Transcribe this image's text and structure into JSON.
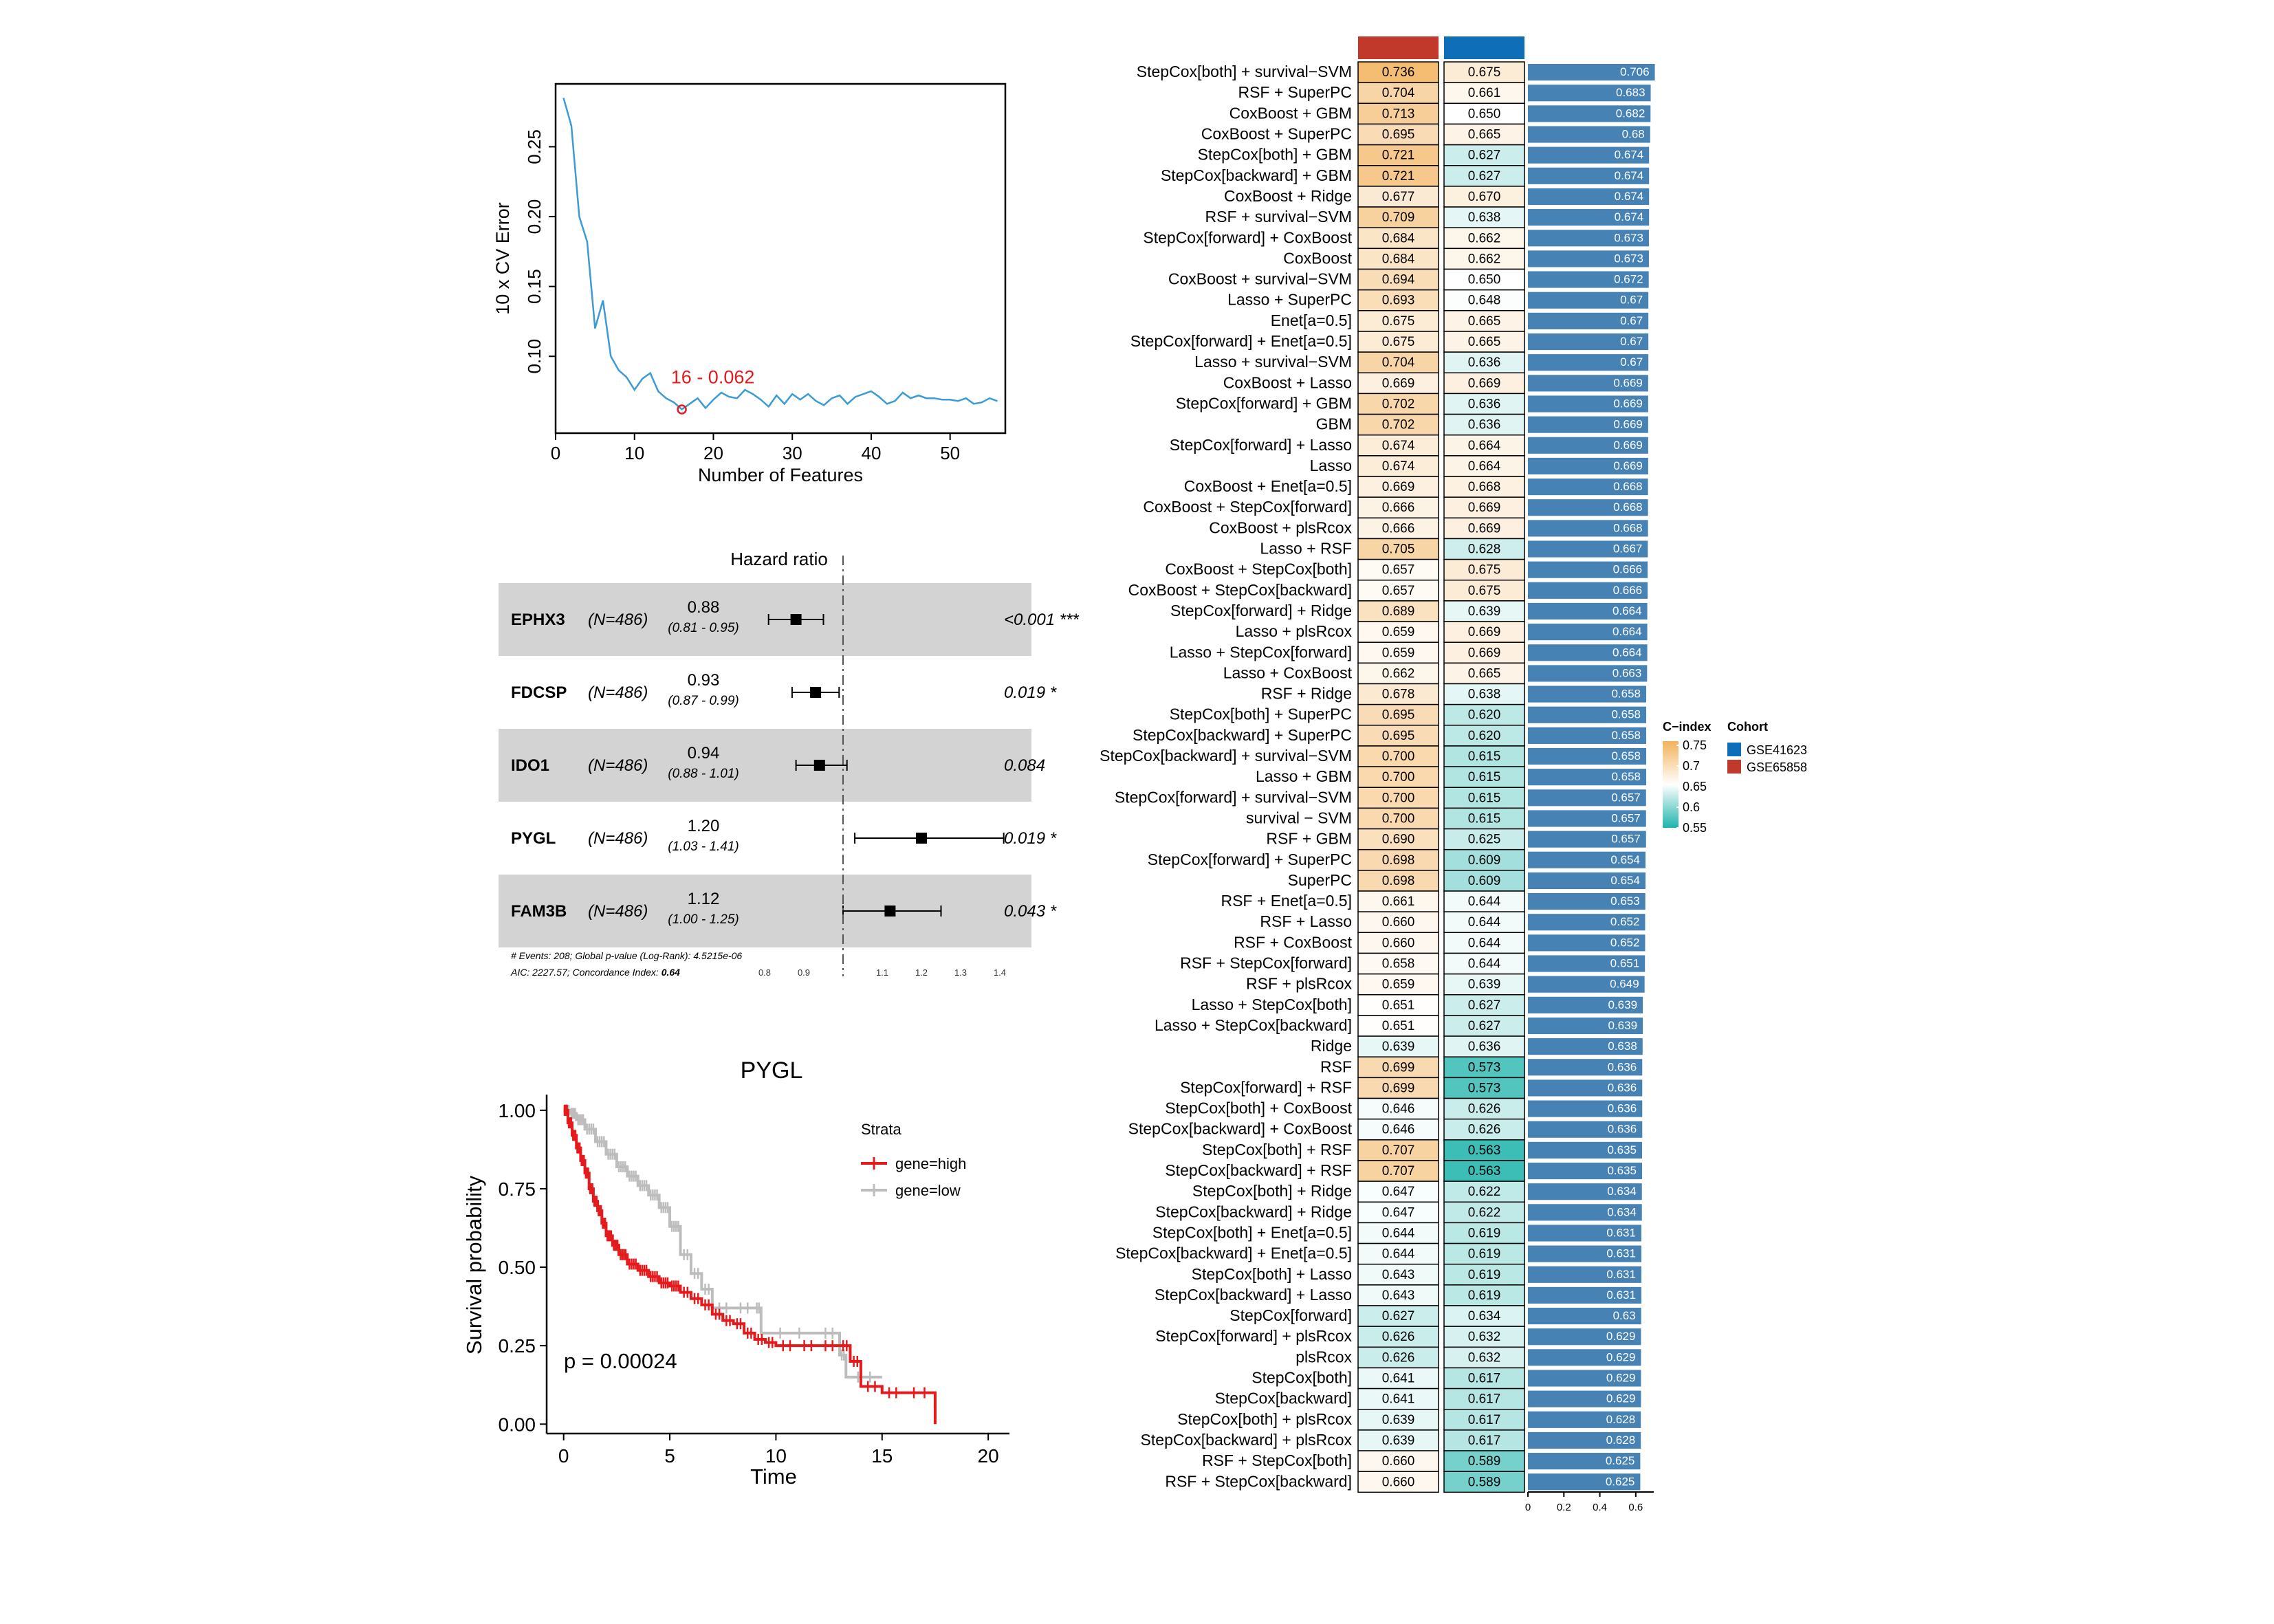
{
  "chart_data": [
    {
      "type": "line",
      "xlabel": "Number of Features",
      "ylabel": "10 x CV Error",
      "xlim": [
        0,
        57
      ],
      "ylim": [
        0.045,
        0.295
      ],
      "xticks": [
        0,
        10,
        20,
        30,
        40,
        50
      ],
      "yticks": [
        0.1,
        0.15,
        0.2,
        0.25
      ],
      "ytick_labels": [
        "0.10",
        "0.15",
        "0.20",
        "0.25"
      ],
      "color": "#3a9bd5",
      "annotation": "16 - 0.062",
      "highlight": {
        "x": 16,
        "y": 0.062
      },
      "x": [
        1,
        2,
        3,
        4,
        5,
        6,
        7,
        8,
        9,
        10,
        11,
        12,
        13,
        14,
        15,
        16,
        17,
        18,
        19,
        20,
        21,
        22,
        23,
        24,
        25,
        26,
        27,
        28,
        29,
        30,
        31,
        32,
        33,
        34,
        35,
        36,
        37,
        38,
        39,
        40,
        41,
        42,
        43,
        44,
        45,
        46,
        47,
        48,
        49,
        50,
        51,
        52,
        53,
        54,
        55,
        56
      ],
      "y": [
        0.285,
        0.265,
        0.2,
        0.182,
        0.12,
        0.14,
        0.1,
        0.09,
        0.085,
        0.076,
        0.084,
        0.088,
        0.075,
        0.07,
        0.067,
        0.062,
        0.066,
        0.07,
        0.063,
        0.069,
        0.074,
        0.071,
        0.07,
        0.076,
        0.073,
        0.069,
        0.064,
        0.072,
        0.066,
        0.073,
        0.069,
        0.073,
        0.068,
        0.065,
        0.07,
        0.072,
        0.066,
        0.071,
        0.073,
        0.075,
        0.071,
        0.066,
        0.068,
        0.074,
        0.07,
        0.072,
        0.07,
        0.07,
        0.069,
        0.069,
        0.068,
        0.07,
        0.066,
        0.067,
        0.07,
        0.068
      ]
    },
    {
      "type": "forest",
      "title": "Hazard ratio",
      "rows": [
        {
          "gene": "EPHX3",
          "n": "(N=486)",
          "hr": 0.88,
          "hr_label": "0.88",
          "ci_label": "(0.81 - 0.95)",
          "lo": 0.81,
          "hi": 0.95,
          "p": "<0.001 ***"
        },
        {
          "gene": "FDCSP",
          "n": "(N=486)",
          "hr": 0.93,
          "hr_label": "0.93",
          "ci_label": "(0.87 - 0.99)",
          "lo": 0.87,
          "hi": 0.99,
          "p": "0.019 *"
        },
        {
          "gene": "IDO1",
          "n": "(N=486)",
          "hr": 0.94,
          "hr_label": "0.94",
          "ci_label": "(0.88 - 1.01)",
          "lo": 0.88,
          "hi": 1.01,
          "p": "0.084"
        },
        {
          "gene": "PYGL",
          "n": "(N=486)",
          "hr": 1.2,
          "hr_label": "1.20",
          "ci_label": "(1.03 - 1.41)",
          "lo": 1.03,
          "hi": 1.41,
          "p": "0.019 *"
        },
        {
          "gene": "FAM3B",
          "n": "(N=486)",
          "hr": 1.12,
          "hr_label": "1.12",
          "ci_label": "(1.00 - 1.25)",
          "lo": 1.0,
          "hi": 1.25,
          "p": "0.043 *"
        }
      ],
      "footnote_1_pre": "# Events: 208; Global p-value (Log-Rank): ",
      "footnote_1_val": "4.5215e-06",
      "footnote_2_pre": "AIC: 2227.57; Concordance Index: ",
      "footnote_2_val": "0.64",
      "xticks": [
        0.8,
        0.9,
        1.1,
        1.2,
        1.3,
        1.4
      ],
      "xtick_labels": [
        "0.8",
        "0.9",
        "1.1",
        "1.2",
        "1.3",
        "1.4"
      ],
      "ref_line": 1.0,
      "xlim": [
        0.7,
        1.45
      ],
      "row_shade": "#d3d3d3"
    },
    {
      "type": "km",
      "title": "PYGL",
      "xlabel": "Time",
      "ylabel": "Survival probability",
      "xlim": [
        -0.8,
        21
      ],
      "ylim": [
        -0.03,
        1.05
      ],
      "xticks": [
        0,
        5,
        10,
        15,
        20
      ],
      "yticks": [
        0,
        0.25,
        0.5,
        0.75,
        1.0
      ],
      "ytick_labels": [
        "0.00",
        "0.25",
        "0.50",
        "0.75",
        "1.00"
      ],
      "pvalue": "p = 0.00024",
      "legend_title": "Strata",
      "series": [
        {
          "name": "gene=high",
          "color": "#e41a1c",
          "t": [
            0,
            0.2,
            0.4,
            0.6,
            0.8,
            1.0,
            1.2,
            1.4,
            1.6,
            1.8,
            2.0,
            2.3,
            2.6,
            3.0,
            3.5,
            4.0,
            4.5,
            5.0,
            5.5,
            6.0,
            6.5,
            7.0,
            7.5,
            8.0,
            8.5,
            9.0,
            9.5,
            10.0,
            11.0,
            12.0,
            13.0,
            13.5,
            14.0,
            15.0,
            16.0,
            17.5
          ],
          "s": [
            1.0,
            0.96,
            0.92,
            0.88,
            0.84,
            0.8,
            0.75,
            0.71,
            0.68,
            0.64,
            0.6,
            0.57,
            0.54,
            0.51,
            0.49,
            0.47,
            0.45,
            0.44,
            0.42,
            0.4,
            0.38,
            0.35,
            0.33,
            0.32,
            0.29,
            0.27,
            0.26,
            0.25,
            0.25,
            0.25,
            0.25,
            0.2,
            0.12,
            0.1,
            0.1,
            0.0
          ]
        },
        {
          "name": "gene=low",
          "color": "#bdbdbd",
          "t": [
            0,
            0.3,
            0.6,
            1.0,
            1.5,
            2.0,
            2.5,
            3.0,
            3.5,
            4.0,
            4.5,
            5.0,
            5.5,
            6.0,
            6.5,
            7.0,
            8.0,
            9.0,
            9.3,
            12.0,
            13.0,
            13.3,
            15.0
          ],
          "s": [
            1.0,
            0.99,
            0.97,
            0.94,
            0.9,
            0.86,
            0.82,
            0.79,
            0.76,
            0.73,
            0.69,
            0.63,
            0.54,
            0.48,
            0.43,
            0.37,
            0.37,
            0.37,
            0.29,
            0.29,
            0.22,
            0.15,
            0.15
          ]
        }
      ]
    },
    {
      "type": "heatmap",
      "columns": [
        "GSE65858",
        "GSE41623",
        "C-index"
      ],
      "column_colors": [
        "#c0392b",
        "#0e6fb8"
      ],
      "legend": {
        "cindex_title": "C−index",
        "cindex_ticks": [
          "0.75",
          "0.7",
          "0.65",
          "0.6",
          "0.55"
        ],
        "cohort_title": "Cohort",
        "cohorts": [
          {
            "name": "GSE41623",
            "color": "#0e6fb8"
          },
          {
            "name": "GSE65858",
            "color": "#c0392b"
          }
        ]
      },
      "bar_color": "#4682b4",
      "bar_axis": {
        "xlim": [
          0,
          0.7
        ],
        "ticks": [
          0,
          0.2,
          0.4,
          0.6
        ],
        "tick_labels": [
          "0",
          "0.2",
          "0.4",
          "0.6"
        ]
      },
      "rows": [
        {
          "model": "StepCox[both] + survival−SVM",
          "a": "0.736",
          "b": "0.675",
          "mean": "0.706"
        },
        {
          "model": "RSF + SuperPC",
          "a": "0.704",
          "b": "0.661",
          "mean": "0.683"
        },
        {
          "model": "CoxBoost + GBM",
          "a": "0.713",
          "b": "0.650",
          "mean": "0.682"
        },
        {
          "model": "CoxBoost + SuperPC",
          "a": "0.695",
          "b": "0.665",
          "mean": "0.68"
        },
        {
          "model": "StepCox[both] + GBM",
          "a": "0.721",
          "b": "0.627",
          "mean": "0.674"
        },
        {
          "model": "StepCox[backward] + GBM",
          "a": "0.721",
          "b": "0.627",
          "mean": "0.674"
        },
        {
          "model": "CoxBoost + Ridge",
          "a": "0.677",
          "b": "0.670",
          "mean": "0.674"
        },
        {
          "model": "RSF + survival−SVM",
          "a": "0.709",
          "b": "0.638",
          "mean": "0.674"
        },
        {
          "model": "StepCox[forward] + CoxBoost",
          "a": "0.684",
          "b": "0.662",
          "mean": "0.673"
        },
        {
          "model": "CoxBoost",
          "a": "0.684",
          "b": "0.662",
          "mean": "0.673"
        },
        {
          "model": "CoxBoost + survival−SVM",
          "a": "0.694",
          "b": "0.650",
          "mean": "0.672"
        },
        {
          "model": "Lasso + SuperPC",
          "a": "0.693",
          "b": "0.648",
          "mean": "0.67"
        },
        {
          "model": "Enet[a=0.5]",
          "a": "0.675",
          "b": "0.665",
          "mean": "0.67"
        },
        {
          "model": "StepCox[forward] + Enet[a=0.5]",
          "a": "0.675",
          "b": "0.665",
          "mean": "0.67"
        },
        {
          "model": "Lasso + survival−SVM",
          "a": "0.704",
          "b": "0.636",
          "mean": "0.67"
        },
        {
          "model": "CoxBoost + Lasso",
          "a": "0.669",
          "b": "0.669",
          "mean": "0.669"
        },
        {
          "model": "StepCox[forward] + GBM",
          "a": "0.702",
          "b": "0.636",
          "mean": "0.669"
        },
        {
          "model": "GBM",
          "a": "0.702",
          "b": "0.636",
          "mean": "0.669"
        },
        {
          "model": "StepCox[forward] + Lasso",
          "a": "0.674",
          "b": "0.664",
          "mean": "0.669"
        },
        {
          "model": "Lasso",
          "a": "0.674",
          "b": "0.664",
          "mean": "0.669"
        },
        {
          "model": "CoxBoost + Enet[a=0.5]",
          "a": "0.669",
          "b": "0.668",
          "mean": "0.668"
        },
        {
          "model": "CoxBoost + StepCox[forward]",
          "a": "0.666",
          "b": "0.669",
          "mean": "0.668"
        },
        {
          "model": "CoxBoost + plsRcox",
          "a": "0.666",
          "b": "0.669",
          "mean": "0.668"
        },
        {
          "model": "Lasso + RSF",
          "a": "0.705",
          "b": "0.628",
          "mean": "0.667"
        },
        {
          "model": "CoxBoost + StepCox[both]",
          "a": "0.657",
          "b": "0.675",
          "mean": "0.666"
        },
        {
          "model": "CoxBoost + StepCox[backward]",
          "a": "0.657",
          "b": "0.675",
          "mean": "0.666"
        },
        {
          "model": "StepCox[forward] + Ridge",
          "a": "0.689",
          "b": "0.639",
          "mean": "0.664"
        },
        {
          "model": "Lasso + plsRcox",
          "a": "0.659",
          "b": "0.669",
          "mean": "0.664"
        },
        {
          "model": "Lasso + StepCox[forward]",
          "a": "0.659",
          "b": "0.669",
          "mean": "0.664"
        },
        {
          "model": "Lasso + CoxBoost",
          "a": "0.662",
          "b": "0.665",
          "mean": "0.663"
        },
        {
          "model": "RSF + Ridge",
          "a": "0.678",
          "b": "0.638",
          "mean": "0.658"
        },
        {
          "model": "StepCox[both] + SuperPC",
          "a": "0.695",
          "b": "0.620",
          "mean": "0.658"
        },
        {
          "model": "StepCox[backward] + SuperPC",
          "a": "0.695",
          "b": "0.620",
          "mean": "0.658"
        },
        {
          "model": "StepCox[backward] + survival−SVM",
          "a": "0.700",
          "b": "0.615",
          "mean": "0.658"
        },
        {
          "model": "Lasso + GBM",
          "a": "0.700",
          "b": "0.615",
          "mean": "0.658"
        },
        {
          "model": "StepCox[forward] + survival−SVM",
          "a": "0.700",
          "b": "0.615",
          "mean": "0.657"
        },
        {
          "model": "survival − SVM",
          "a": "0.700",
          "b": "0.615",
          "mean": "0.657"
        },
        {
          "model": "RSF + GBM",
          "a": "0.690",
          "b": "0.625",
          "mean": "0.657"
        },
        {
          "model": "StepCox[forward] + SuperPC",
          "a": "0.698",
          "b": "0.609",
          "mean": "0.654"
        },
        {
          "model": "SuperPC",
          "a": "0.698",
          "b": "0.609",
          "mean": "0.654"
        },
        {
          "model": "RSF + Enet[a=0.5]",
          "a": "0.661",
          "b": "0.644",
          "mean": "0.653"
        },
        {
          "model": "RSF + Lasso",
          "a": "0.660",
          "b": "0.644",
          "mean": "0.652"
        },
        {
          "model": "RSF + CoxBoost",
          "a": "0.660",
          "b": "0.644",
          "mean": "0.652"
        },
        {
          "model": "RSF + StepCox[forward]",
          "a": "0.658",
          "b": "0.644",
          "mean": "0.651"
        },
        {
          "model": "RSF + plsRcox",
          "a": "0.659",
          "b": "0.639",
          "mean": "0.649"
        },
        {
          "model": "Lasso + StepCox[both]",
          "a": "0.651",
          "b": "0.627",
          "mean": "0.639"
        },
        {
          "model": "Lasso + StepCox[backward]",
          "a": "0.651",
          "b": "0.627",
          "mean": "0.639"
        },
        {
          "model": "Ridge",
          "a": "0.639",
          "b": "0.636",
          "mean": "0.638"
        },
        {
          "model": "RSF",
          "a": "0.699",
          "b": "0.573",
          "mean": "0.636"
        },
        {
          "model": "StepCox[forward] + RSF",
          "a": "0.699",
          "b": "0.573",
          "mean": "0.636"
        },
        {
          "model": "StepCox[both] + CoxBoost",
          "a": "0.646",
          "b": "0.626",
          "mean": "0.636"
        },
        {
          "model": "StepCox[backward] + CoxBoost",
          "a": "0.646",
          "b": "0.626",
          "mean": "0.636"
        },
        {
          "model": "StepCox[both] + RSF",
          "a": "0.707",
          "b": "0.563",
          "mean": "0.635"
        },
        {
          "model": "StepCox[backward] + RSF",
          "a": "0.707",
          "b": "0.563",
          "mean": "0.635"
        },
        {
          "model": "StepCox[both] + Ridge",
          "a": "0.647",
          "b": "0.622",
          "mean": "0.634"
        },
        {
          "model": "StepCox[backward] + Ridge",
          "a": "0.647",
          "b": "0.622",
          "mean": "0.634"
        },
        {
          "model": "StepCox[both] + Enet[a=0.5]",
          "a": "0.644",
          "b": "0.619",
          "mean": "0.631"
        },
        {
          "model": "StepCox[backward] + Enet[a=0.5]",
          "a": "0.644",
          "b": "0.619",
          "mean": "0.631"
        },
        {
          "model": "StepCox[both] + Lasso",
          "a": "0.643",
          "b": "0.619",
          "mean": "0.631"
        },
        {
          "model": "StepCox[backward] + Lasso",
          "a": "0.643",
          "b": "0.619",
          "mean": "0.631"
        },
        {
          "model": "StepCox[forward]",
          "a": "0.627",
          "b": "0.634",
          "mean": "0.63"
        },
        {
          "model": "StepCox[forward] + plsRcox",
          "a": "0.626",
          "b": "0.632",
          "mean": "0.629"
        },
        {
          "model": "plsRcox",
          "a": "0.626",
          "b": "0.632",
          "mean": "0.629"
        },
        {
          "model": "StepCox[both]",
          "a": "0.641",
          "b": "0.617",
          "mean": "0.629"
        },
        {
          "model": "StepCox[backward]",
          "a": "0.641",
          "b": "0.617",
          "mean": "0.629"
        },
        {
          "model": "StepCox[both] + plsRcox",
          "a": "0.639",
          "b": "0.617",
          "mean": "0.628"
        },
        {
          "model": "StepCox[backward] + plsRcox",
          "a": "0.639",
          "b": "0.617",
          "mean": "0.628"
        },
        {
          "model": "RSF + StepCox[both]",
          "a": "0.660",
          "b": "0.589",
          "mean": "0.625"
        },
        {
          "model": "RSF + StepCox[backward]",
          "a": "0.660",
          "b": "0.589",
          "mean": "0.625"
        }
      ]
    }
  ]
}
